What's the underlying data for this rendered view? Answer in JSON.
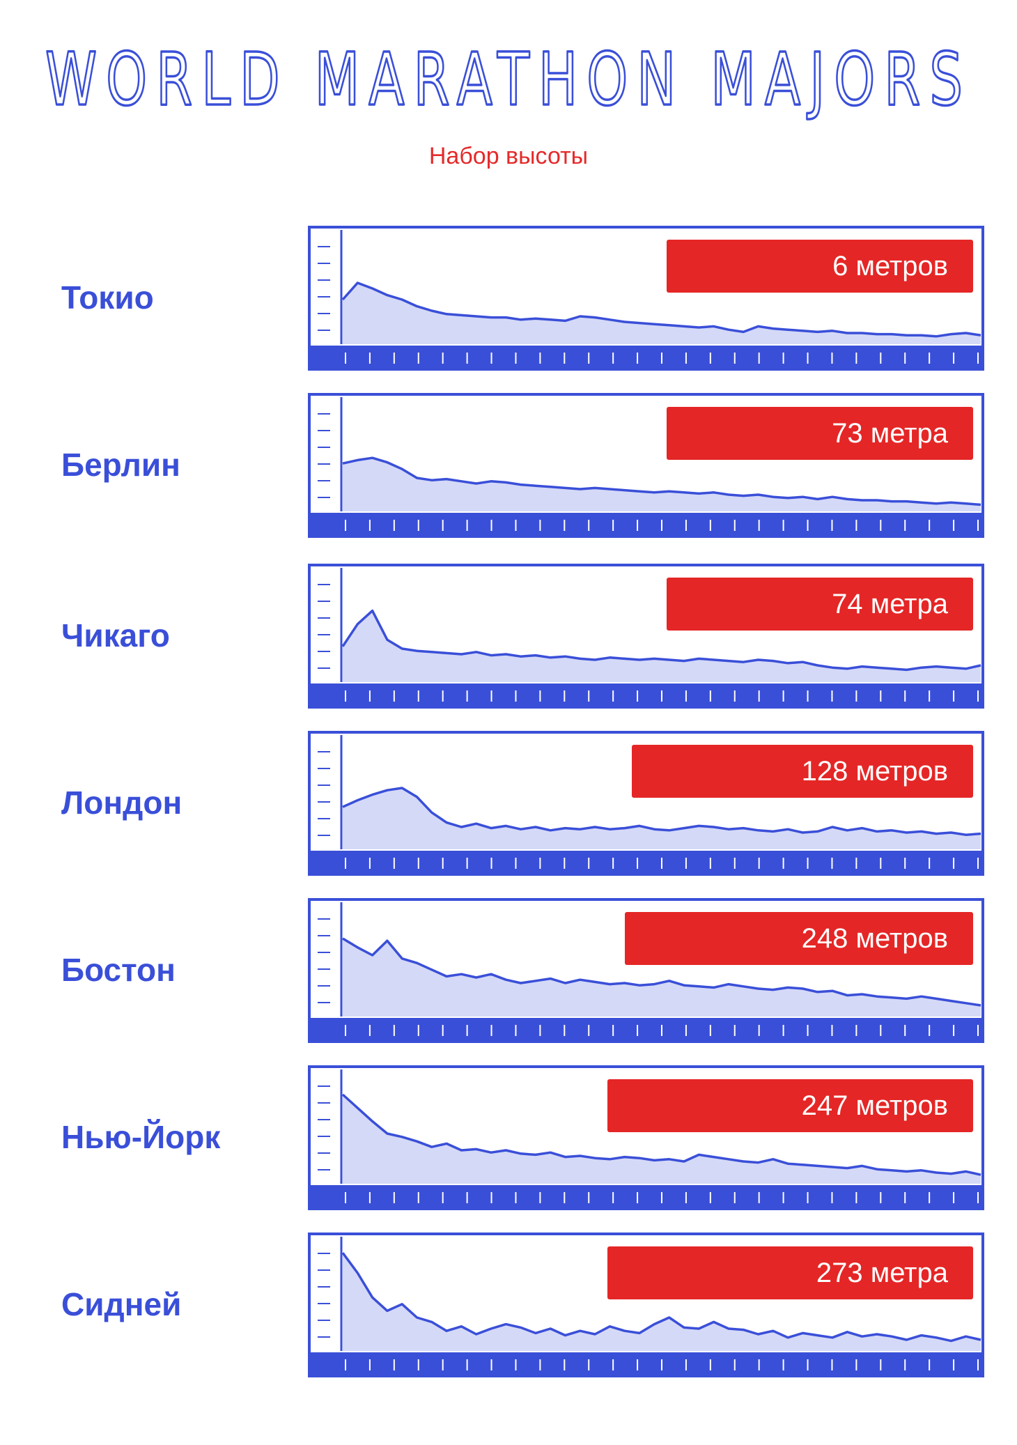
{
  "title": "WORLD MARATHON MAJORS",
  "subtitle": "Набор высоты",
  "colors": {
    "ink": "#3a4fd8",
    "fill": "#d4d9f7",
    "accent": "#e52626"
  },
  "chart_data": [
    {
      "type": "area",
      "title": "Токио",
      "annotation": "6 метров",
      "values": [
        0.4,
        0.55,
        0.5,
        0.44,
        0.4,
        0.34,
        0.3,
        0.27,
        0.26,
        0.25,
        0.24,
        0.24,
        0.22,
        0.23,
        0.22,
        0.21,
        0.25,
        0.24,
        0.22,
        0.2,
        0.19,
        0.18,
        0.17,
        0.16,
        0.15,
        0.16,
        0.13,
        0.11,
        0.16,
        0.14,
        0.13,
        0.12,
        0.11,
        0.12,
        0.1,
        0.1,
        0.09,
        0.09,
        0.08,
        0.08,
        0.07,
        0.09,
        0.1,
        0.08
      ]
    },
    {
      "type": "area",
      "title": "Берлин",
      "annotation": "73 метра",
      "values": [
        0.43,
        0.46,
        0.48,
        0.44,
        0.38,
        0.3,
        0.28,
        0.29,
        0.27,
        0.25,
        0.27,
        0.26,
        0.24,
        0.23,
        0.22,
        0.21,
        0.2,
        0.21,
        0.2,
        0.19,
        0.18,
        0.17,
        0.18,
        0.17,
        0.16,
        0.17,
        0.15,
        0.14,
        0.15,
        0.13,
        0.12,
        0.13,
        0.11,
        0.13,
        0.11,
        0.1,
        0.1,
        0.09,
        0.09,
        0.08,
        0.07,
        0.08,
        0.07,
        0.06
      ]
    },
    {
      "type": "area",
      "title": "Чикаго",
      "annotation": "74 метра",
      "values": [
        0.32,
        0.52,
        0.64,
        0.38,
        0.3,
        0.28,
        0.27,
        0.26,
        0.25,
        0.27,
        0.24,
        0.25,
        0.23,
        0.24,
        0.22,
        0.23,
        0.21,
        0.2,
        0.22,
        0.21,
        0.2,
        0.21,
        0.2,
        0.19,
        0.21,
        0.2,
        0.19,
        0.18,
        0.2,
        0.19,
        0.17,
        0.18,
        0.15,
        0.13,
        0.12,
        0.14,
        0.13,
        0.12,
        0.11,
        0.13,
        0.14,
        0.13,
        0.12,
        0.15
      ]
    },
    {
      "type": "area",
      "title": "Лондон",
      "annotation": "128 метров",
      "values": [
        0.38,
        0.44,
        0.49,
        0.53,
        0.55,
        0.47,
        0.33,
        0.24,
        0.2,
        0.23,
        0.19,
        0.21,
        0.18,
        0.2,
        0.17,
        0.19,
        0.18,
        0.2,
        0.18,
        0.19,
        0.21,
        0.18,
        0.17,
        0.19,
        0.21,
        0.2,
        0.18,
        0.19,
        0.17,
        0.16,
        0.18,
        0.15,
        0.16,
        0.2,
        0.17,
        0.19,
        0.16,
        0.17,
        0.15,
        0.16,
        0.14,
        0.15,
        0.13,
        0.14
      ]
    },
    {
      "type": "area",
      "title": "Бостон",
      "annotation": "248 метров",
      "values": [
        0.7,
        0.62,
        0.55,
        0.68,
        0.52,
        0.48,
        0.42,
        0.36,
        0.38,
        0.35,
        0.38,
        0.33,
        0.3,
        0.32,
        0.34,
        0.3,
        0.33,
        0.31,
        0.29,
        0.3,
        0.28,
        0.29,
        0.32,
        0.28,
        0.27,
        0.26,
        0.29,
        0.27,
        0.25,
        0.24,
        0.26,
        0.25,
        0.22,
        0.23,
        0.19,
        0.2,
        0.18,
        0.17,
        0.16,
        0.18,
        0.16,
        0.14,
        0.12,
        0.1
      ]
    },
    {
      "type": "area",
      "title": "Нью-Йорк",
      "annotation": "247 метров",
      "values": [
        0.8,
        0.68,
        0.56,
        0.45,
        0.42,
        0.38,
        0.33,
        0.36,
        0.3,
        0.31,
        0.28,
        0.3,
        0.27,
        0.26,
        0.28,
        0.24,
        0.25,
        0.23,
        0.22,
        0.24,
        0.23,
        0.21,
        0.22,
        0.2,
        0.26,
        0.24,
        0.22,
        0.2,
        0.19,
        0.22,
        0.18,
        0.17,
        0.16,
        0.15,
        0.14,
        0.16,
        0.13,
        0.12,
        0.11,
        0.12,
        0.1,
        0.09,
        0.11,
        0.08
      ]
    },
    {
      "type": "area",
      "title": "Сидней",
      "annotation": "273 метра",
      "values": [
        0.88,
        0.7,
        0.48,
        0.36,
        0.42,
        0.3,
        0.26,
        0.18,
        0.22,
        0.15,
        0.2,
        0.24,
        0.21,
        0.16,
        0.2,
        0.14,
        0.18,
        0.15,
        0.22,
        0.18,
        0.16,
        0.24,
        0.3,
        0.21,
        0.2,
        0.26,
        0.2,
        0.19,
        0.15,
        0.18,
        0.12,
        0.16,
        0.14,
        0.12,
        0.17,
        0.13,
        0.15,
        0.13,
        0.1,
        0.14,
        0.12,
        0.09,
        0.13,
        0.1
      ]
    }
  ]
}
